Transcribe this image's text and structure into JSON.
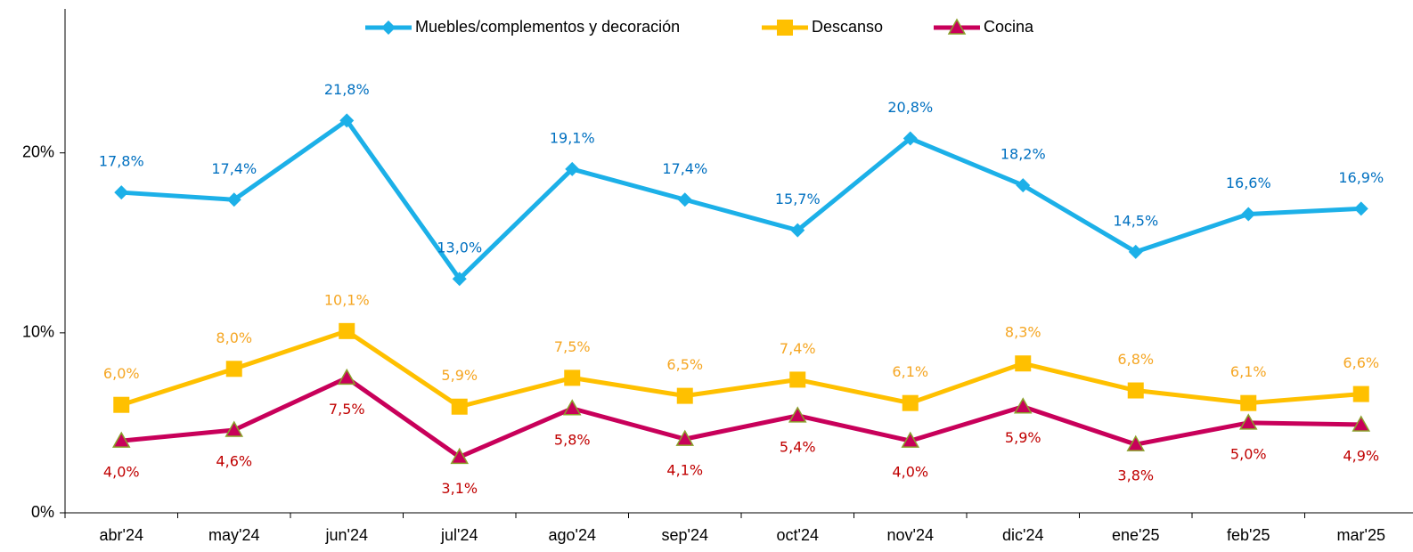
{
  "chart_data": {
    "type": "line",
    "categories": [
      "abr'24",
      "may'24",
      "jun'24",
      "jul'24",
      "ago'24",
      "sep'24",
      "oct'24",
      "nov'24",
      "dic'24",
      "ene'25",
      "feb'25",
      "mar'25"
    ],
    "series": [
      {
        "name": "Muebles/complementos y decoración",
        "color": "#1cb0e8",
        "marker": "diamond",
        "label_color": "#0070c0",
        "label_position": "above",
        "values": [
          17.8,
          17.4,
          21.8,
          13.0,
          19.1,
          17.4,
          15.7,
          20.8,
          18.2,
          14.5,
          16.6,
          16.9
        ],
        "value_labels": [
          "17,8%",
          "17,4%",
          "21,8%",
          "13,0%",
          "19,1%",
          "17,4%",
          "15,7%",
          "20,8%",
          "18,2%",
          "14,5%",
          "16,6%",
          "16,9%"
        ]
      },
      {
        "name": "Descanso",
        "color": "#ffc000",
        "marker": "square",
        "label_color": "#f5a623",
        "label_position": "above",
        "values": [
          6.0,
          8.0,
          10.1,
          5.9,
          7.5,
          6.5,
          7.4,
          6.1,
          8.3,
          6.8,
          6.1,
          6.6
        ],
        "value_labels": [
          "6,0%",
          "8,0%",
          "10,1%",
          "5,9%",
          "7,5%",
          "6,5%",
          "7,4%",
          "6,1%",
          "8,3%",
          "6,8%",
          "6,1%",
          "6,6%"
        ]
      },
      {
        "name": "Cocina",
        "color": "#c8005a",
        "marker": "triangle",
        "label_color": "#c00000",
        "label_position": "below",
        "values": [
          4.0,
          4.6,
          7.5,
          3.1,
          5.8,
          4.1,
          5.4,
          4.0,
          5.9,
          3.8,
          5.0,
          4.9
        ],
        "value_labels": [
          "4,0%",
          "4,6%",
          "7,5%",
          "3,1%",
          "5,8%",
          "4,1%",
          "5,4%",
          "4,0%",
          "5,9%",
          "3,8%",
          "5,0%",
          "4,9%"
        ]
      }
    ],
    "ylim": [
      0,
      28
    ],
    "yticks": [
      {
        "value": 0,
        "label": "0%"
      },
      {
        "value": 10,
        "label": "10%"
      },
      {
        "value": 20,
        "label": "20%"
      }
    ],
    "legend": "top"
  }
}
